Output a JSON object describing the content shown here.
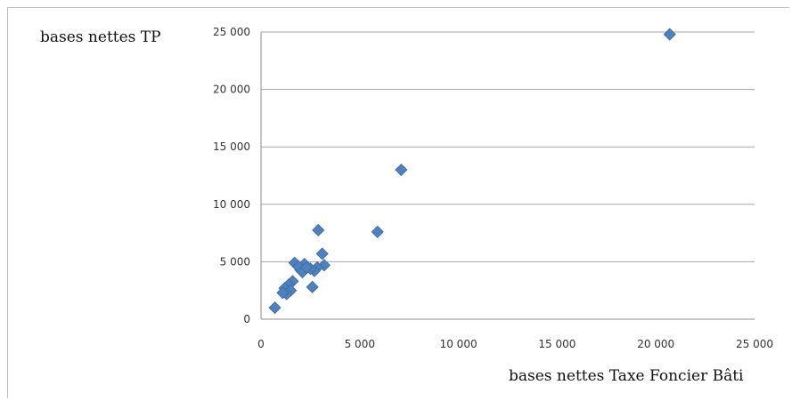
{
  "chart_data": {
    "type": "scatter",
    "title": "",
    "xlabel": "bases nettes Taxe Foncier Bâti",
    "ylabel": "bases nettes TP",
    "xlim": [
      0,
      25000
    ],
    "ylim": [
      0,
      25000
    ],
    "x_ticks": [
      0,
      5000,
      10000,
      15000,
      20000,
      25000
    ],
    "y_ticks": [
      0,
      5000,
      10000,
      15000,
      20000,
      25000
    ],
    "x_tick_labels": [
      "0",
      "5 000",
      "10 000",
      "15 000",
      "20 000",
      "25 000"
    ],
    "y_tick_labels": [
      "0",
      "5 000",
      "10 000",
      "15 000",
      "20 000",
      "25 000"
    ],
    "grid": "horizontal",
    "legend": "none",
    "marker": "diamond",
    "marker_color": "#4f81bd",
    "points": [
      {
        "x": 20700,
        "y": 24800
      },
      {
        "x": 7100,
        "y": 13000
      },
      {
        "x": 5900,
        "y": 7600
      },
      {
        "x": 2900,
        "y": 7750
      },
      {
        "x": 3100,
        "y": 5700
      },
      {
        "x": 3200,
        "y": 4700
      },
      {
        "x": 2850,
        "y": 4500
      },
      {
        "x": 2700,
        "y": 4200
      },
      {
        "x": 2500,
        "y": 4400
      },
      {
        "x": 2200,
        "y": 4800
      },
      {
        "x": 2000,
        "y": 4300
      },
      {
        "x": 1700,
        "y": 4900
      },
      {
        "x": 1900,
        "y": 4600
      },
      {
        "x": 2100,
        "y": 4100
      },
      {
        "x": 2300,
        "y": 4500
      },
      {
        "x": 2600,
        "y": 2800
      },
      {
        "x": 1600,
        "y": 3300
      },
      {
        "x": 1400,
        "y": 3000
      },
      {
        "x": 1200,
        "y": 2700
      },
      {
        "x": 1500,
        "y": 2500
      },
      {
        "x": 1300,
        "y": 2200
      },
      {
        "x": 1100,
        "y": 2300
      },
      {
        "x": 700,
        "y": 1000
      }
    ]
  }
}
